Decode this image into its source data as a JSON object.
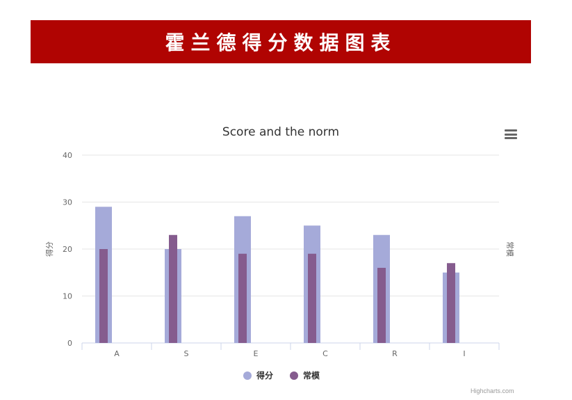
{
  "header": {
    "title": "霍兰德得分数据图表"
  },
  "credits": "Highcharts.com",
  "colors": {
    "banner": "#b00402",
    "series1": "#a5aad9",
    "series2": "#855c8e",
    "grid": "#e6e6e6",
    "axis_text": "#666666"
  },
  "menu": {
    "icon": "hamburger-menu-icon"
  },
  "chart_data": {
    "type": "bar",
    "title": "Score and the norm",
    "categories": [
      "A",
      "S",
      "E",
      "C",
      "R",
      "I"
    ],
    "yticks": [
      0,
      10,
      20,
      30,
      40
    ],
    "ylim": [
      0,
      40
    ],
    "ylabel": "得分",
    "ylabel_right": "常模",
    "series": [
      {
        "name": "得分",
        "values": [
          29,
          20,
          27,
          25,
          23,
          15
        ]
      },
      {
        "name": "常模",
        "values": [
          20,
          23,
          19,
          19,
          16,
          17
        ]
      }
    ],
    "grid": true,
    "legend": "bottom-center"
  }
}
